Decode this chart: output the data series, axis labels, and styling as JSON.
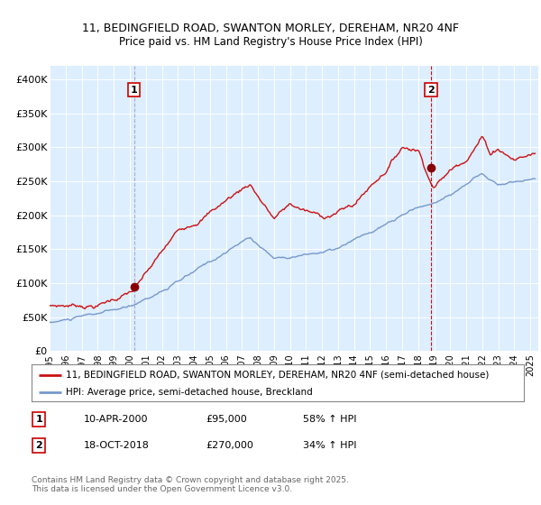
{
  "title1": "11, BEDINGFIELD ROAD, SWANTON MORLEY, DEREHAM, NR20 4NF",
  "title2": "Price paid vs. HM Land Registry's House Price Index (HPI)",
  "bg_color": "#ffffff",
  "plot_bg_color": "#ddeeff",
  "red_line_color": "#cc1111",
  "blue_line_color": "#7799cc",
  "marker_color": "#880000",
  "vline1_color": "#aaaacc",
  "vline2_color": "#cc1111",
  "sale1_date_num": 2000.27,
  "sale1_price": 95000,
  "sale2_date_num": 2018.8,
  "sale2_price": 270000,
  "ylabel_ticks": [
    0,
    50000,
    100000,
    150000,
    200000,
    250000,
    300000,
    350000,
    400000
  ],
  "ylabel_labels": [
    "£0",
    "£50K",
    "£100K",
    "£150K",
    "£200K",
    "£250K",
    "£300K",
    "£350K",
    "£400K"
  ],
  "xmin": 1995.0,
  "xmax": 2025.5,
  "ymin": 0,
  "ymax": 420000,
  "legend1": "11, BEDINGFIELD ROAD, SWANTON MORLEY, DEREHAM, NR20 4NF (semi-detached house)",
  "legend2": "HPI: Average price, semi-detached house, Breckland",
  "annotation1_label": "1",
  "annotation1_date": "10-APR-2000",
  "annotation1_price": "£95,000",
  "annotation1_hpi": "58% ↑ HPI",
  "annotation2_label": "2",
  "annotation2_date": "18-OCT-2018",
  "annotation2_price": "£270,000",
  "annotation2_hpi": "34% ↑ HPI",
  "footer": "Contains HM Land Registry data © Crown copyright and database right 2025.\nThis data is licensed under the Open Government Licence v3.0."
}
